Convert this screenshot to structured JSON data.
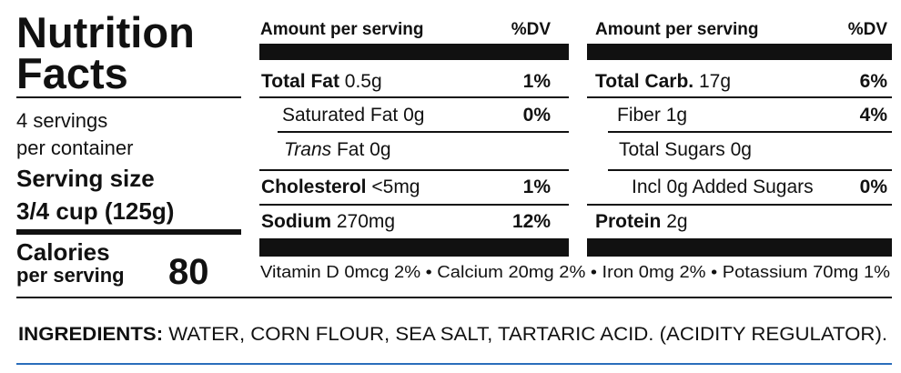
{
  "title": [
    "Nutrition",
    "Facts"
  ],
  "servings": [
    "4 servings",
    "per container"
  ],
  "serving_size": {
    "label": "Serving size",
    "amount": "3/4 cup (125g)"
  },
  "calories": {
    "label": [
      "Calories",
      "per serving"
    ],
    "value": "80"
  },
  "columns": [
    {
      "header": {
        "amount": "Amount per serving",
        "dv": "%DV"
      },
      "rows": [
        {
          "name": "Total Fat",
          "amount": "0.5g",
          "dv": "1%"
        },
        {
          "name": "Saturated Fat",
          "amount": "0g",
          "dv": "0%"
        },
        {
          "name_italic": "Trans",
          "name": "Fat",
          "amount": "0g"
        },
        {
          "name": "Cholesterol",
          "amount": "<5mg",
          "dv": "1%"
        },
        {
          "name": "Sodium",
          "amount": "270mg",
          "dv": "12%"
        }
      ]
    },
    {
      "header": {
        "amount": "Amount per serving",
        "dv": "%DV"
      },
      "rows": [
        {
          "name": "Total Carb.",
          "amount": "17g",
          "dv": "6%"
        },
        {
          "name": "Fiber",
          "amount": "1g",
          "dv": "4%"
        },
        {
          "name": "Total Sugars",
          "amount": "0g"
        },
        {
          "name": "Incl 0g Added Sugars",
          "dv": "0%"
        },
        {
          "name": "Protein",
          "amount": "2g"
        }
      ]
    }
  ],
  "vitamins": [
    "Vitamin D 0mcg 2%",
    "Calcium 20mg 2%",
    "Iron 0mg 2%",
    "Potassium 70mg 1%"
  ],
  "ingredients": {
    "label": "INGREDIENTS:",
    "text": "WATER, CORN FLOUR, SEA SALT, TARTARIC ACID. (ACIDITY REGULATOR)."
  }
}
